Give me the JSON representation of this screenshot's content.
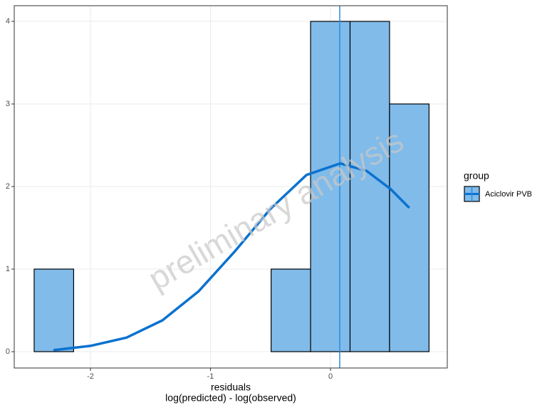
{
  "chart_data": {
    "type": "histogram",
    "name": "Aciclovir PVB",
    "bins": [
      -2.469,
      -2.14,
      -1.811,
      -1.482,
      -1.153,
      -0.824,
      -0.495,
      -0.166,
      0.163,
      0.492,
      0.821
    ],
    "values": [
      1,
      0,
      0,
      0,
      0,
      0,
      1,
      4,
      4,
      3
    ],
    "color": "#80bbea",
    "edge_color": "#000000",
    "curve": {
      "x": [
        -2.3,
        -2.0,
        -1.7,
        -1.4,
        -1.1,
        -0.8,
        -0.5,
        -0.2,
        0.08,
        0.3,
        0.5,
        0.65
      ],
      "y": [
        0.02,
        0.07,
        0.17,
        0.38,
        0.73,
        1.21,
        1.73,
        2.14,
        2.28,
        2.19,
        1.97,
        1.75
      ],
      "color": "#0b72cf"
    },
    "vline": 0.077,
    "vline_color": "#2a8be0",
    "xlim": [
      -2.635,
      0.973
    ],
    "ylim": [
      -0.198,
      4.19
    ],
    "xticks": [
      -2,
      -1,
      0
    ],
    "yticks": [
      0,
      1,
      2,
      3,
      4
    ],
    "grid": true,
    "xlabel": [
      "residuals",
      "log(predicted) - log(observed)"
    ],
    "legend": {
      "title": "group",
      "position": "right"
    },
    "watermark": "preliminary analysis"
  }
}
